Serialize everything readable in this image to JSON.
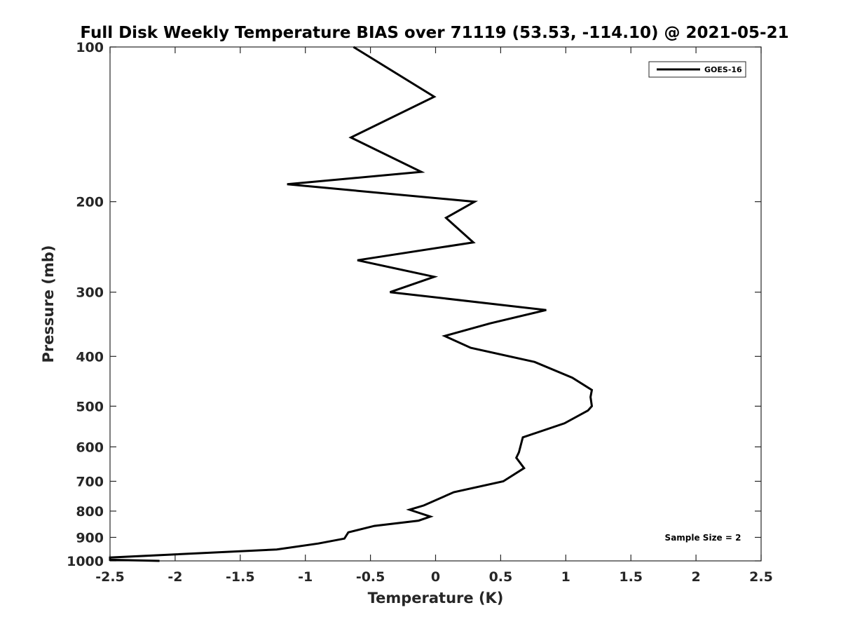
{
  "chart_data": {
    "type": "line",
    "title": "Full Disk Weekly Temperature BIAS over 71119 (53.53, -114.10) @ 2021-05-21",
    "xlabel": "Temperature (K)",
    "ylabel": "Pressure (mb)",
    "xlim": [
      -2.5,
      2.5
    ],
    "ylim": [
      100,
      1000
    ],
    "yscale": "log",
    "y_reversed": true,
    "x_ticks": [
      -2.5,
      -2,
      -1.5,
      -1,
      -0.5,
      0,
      0.5,
      1,
      1.5,
      2,
      2.5
    ],
    "x_tick_labels": [
      "-2.5",
      "-2",
      "-1.5",
      "-1",
      "-0.5",
      "0",
      "0.5",
      "1",
      "1.5",
      "2",
      "2.5"
    ],
    "y_ticks": [
      100,
      200,
      300,
      400,
      500,
      600,
      700,
      800,
      900,
      1000
    ],
    "y_tick_labels": [
      "100",
      "200",
      "300",
      "400",
      "500",
      "600",
      "700",
      "800",
      "900",
      "1000"
    ],
    "grid": false,
    "legend_position": "top-right",
    "annotation": "Sample Size = 2",
    "series": [
      {
        "name": "GOES-16",
        "color": "#000000",
        "points": [
          {
            "x": -0.63,
            "p": 100
          },
          {
            "x": -0.01,
            "p": 125
          },
          {
            "x": -0.65,
            "p": 150
          },
          {
            "x": -0.11,
            "p": 175
          },
          {
            "x": -1.14,
            "p": 185
          },
          {
            "x": 0.3,
            "p": 200
          },
          {
            "x": 0.08,
            "p": 215
          },
          {
            "x": 0.29,
            "p": 240
          },
          {
            "x": -0.6,
            "p": 260
          },
          {
            "x": -0.01,
            "p": 280
          },
          {
            "x": -0.35,
            "p": 300
          },
          {
            "x": 0.85,
            "p": 325
          },
          {
            "x": 0.42,
            "p": 345
          },
          {
            "x": 0.07,
            "p": 365
          },
          {
            "x": 0.27,
            "p": 385
          },
          {
            "x": 0.76,
            "p": 410
          },
          {
            "x": 1.05,
            "p": 440
          },
          {
            "x": 1.2,
            "p": 465
          },
          {
            "x": 1.19,
            "p": 480
          },
          {
            "x": 1.2,
            "p": 500
          },
          {
            "x": 1.17,
            "p": 510
          },
          {
            "x": 0.99,
            "p": 540
          },
          {
            "x": 0.67,
            "p": 575
          },
          {
            "x": 0.64,
            "p": 615
          },
          {
            "x": 0.62,
            "p": 630
          },
          {
            "x": 0.68,
            "p": 660
          },
          {
            "x": 0.52,
            "p": 700
          },
          {
            "x": 0.14,
            "p": 735
          },
          {
            "x": -0.09,
            "p": 780
          },
          {
            "x": -0.2,
            "p": 795
          },
          {
            "x": -0.04,
            "p": 820
          },
          {
            "x": -0.13,
            "p": 835
          },
          {
            "x": -0.47,
            "p": 855
          },
          {
            "x": -0.67,
            "p": 880
          },
          {
            "x": -0.7,
            "p": 905
          },
          {
            "x": -0.9,
            "p": 925
          },
          {
            "x": -1.22,
            "p": 950
          },
          {
            "x": -2.5,
            "p": 985
          },
          {
            "x": -2.5,
            "p": 995
          },
          {
            "x": -2.12,
            "p": 1000
          }
        ]
      }
    ]
  }
}
